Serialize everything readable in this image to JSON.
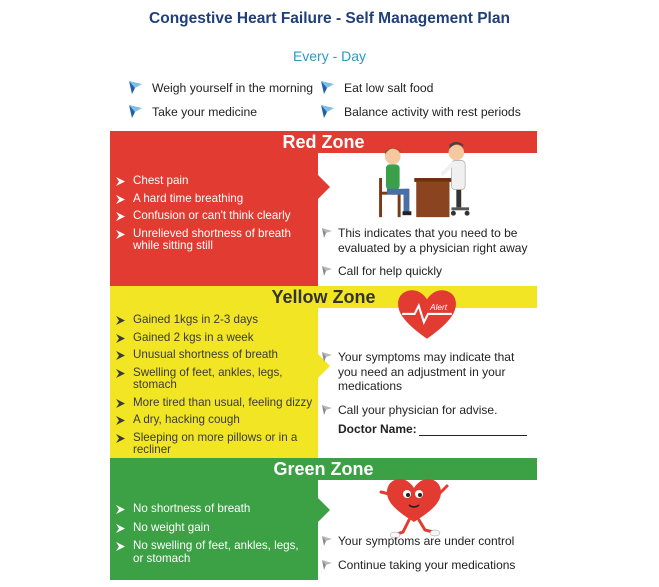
{
  "title": "Congestive Heart Failure - Self Management Plan",
  "subtitle": "Every - Day",
  "everyday": [
    "Weigh yourself in the morning",
    "Eat  low salt food",
    "Take your medicine",
    "Balance activity with rest periods"
  ],
  "zones": {
    "red": {
      "name": "Red Zone",
      "symptoms": [
        "Chest pain",
        "A hard time breathing",
        "Confusion or can't think clearly",
        "Unrelieved shortness of breath while sitting still"
      ],
      "actions": [
        "This indicates that you need to be evaluated by a physician right away",
        "Call for help quickly"
      ]
    },
    "yellow": {
      "name": "Yellow Zone",
      "alert_label": "Alert",
      "symptoms": [
        "Gained 1kgs in 2-3 days",
        "Gained 2 kgs in a week",
        "Unusual shortness of breath",
        "Swelling of feet, ankles, legs, stomach",
        "More tired than usual, feeling dizzy",
        "A dry, hacking cough",
        "Sleeping on more pillows or in a recliner"
      ],
      "actions": [
        "Your symptoms may indicate that you need an adjustment in your medications",
        "Call your physician for advise."
      ],
      "doctor_label": "Doctor Name:"
    },
    "green": {
      "name": "Green Zone",
      "symptoms": [
        "No shortness of breath",
        "No weight gain",
        "No swelling of feet, ankles, legs, or stomach"
      ],
      "actions": [
        "Your symptoms are under control",
        "Continue taking your medications"
      ]
    }
  },
  "colors": {
    "red": "#e23b32",
    "yellow": "#f2e624",
    "green": "#3ca044",
    "title": "#1f3f7a",
    "subtitle": "#2a9abf"
  }
}
